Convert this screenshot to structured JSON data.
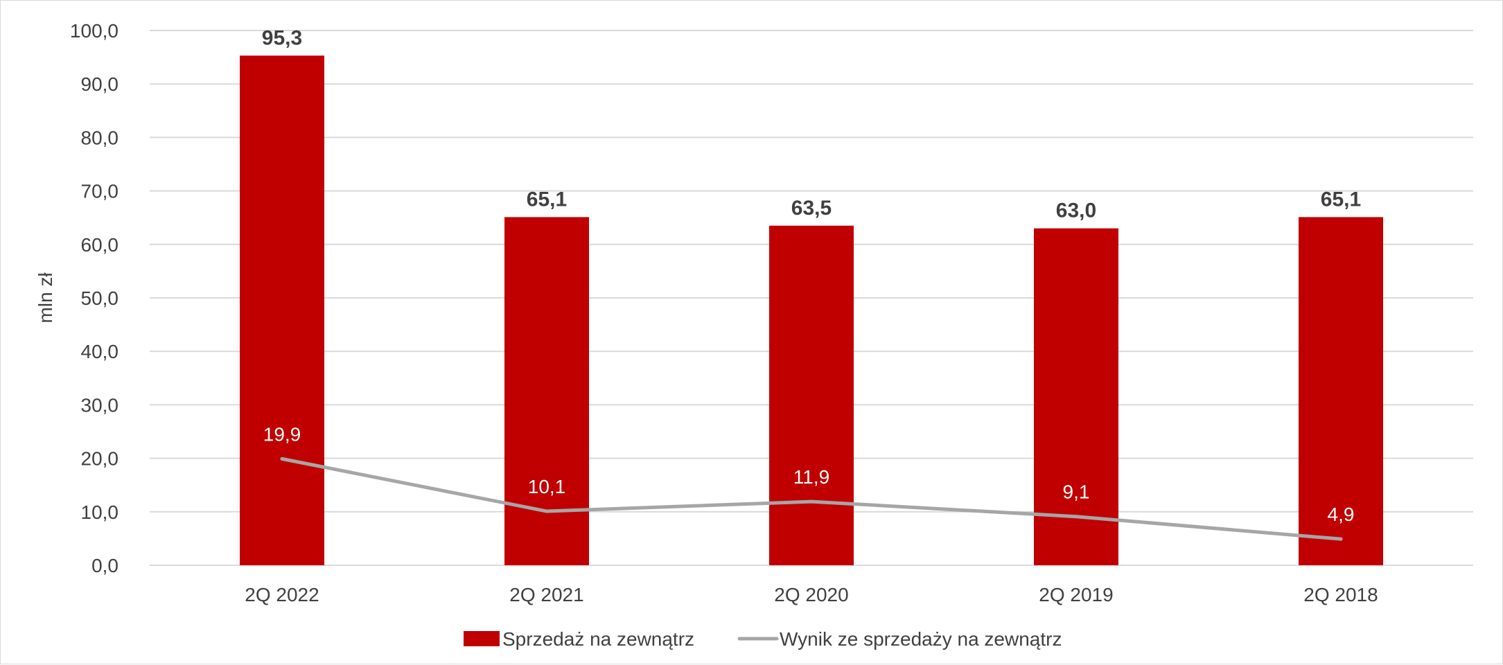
{
  "chart_data": {
    "type": "bar",
    "title": "",
    "xlabel": "",
    "ylabel": "mln zł",
    "ylim": [
      0,
      100
    ],
    "ytick_step": 10,
    "ytick_labels": [
      "0,0",
      "10,0",
      "20,0",
      "30,0",
      "40,0",
      "50,0",
      "60,0",
      "70,0",
      "80,0",
      "90,0",
      "100,0"
    ],
    "grid": true,
    "legend_position": "bottom",
    "categories": [
      "2Q 2022",
      "2Q 2021",
      "2Q 2020",
      "2Q 2019",
      "2Q 2018"
    ],
    "series": [
      {
        "name": "Sprzedaż na zewnątrz",
        "type": "bar",
        "color": "#c00000",
        "values": [
          95.3,
          65.1,
          63.5,
          63.0,
          65.1
        ],
        "labels": [
          "95,3",
          "65,1",
          "63,5",
          "63,0",
          "65,1"
        ]
      },
      {
        "name": "Wynik ze sprzedaży na zewnątrz",
        "type": "line",
        "color": "#a6a6a6",
        "values": [
          19.9,
          10.1,
          11.9,
          9.1,
          4.9
        ],
        "labels": [
          "19,9",
          "10,1",
          "11,9",
          "9,1",
          "4,9"
        ]
      }
    ]
  }
}
